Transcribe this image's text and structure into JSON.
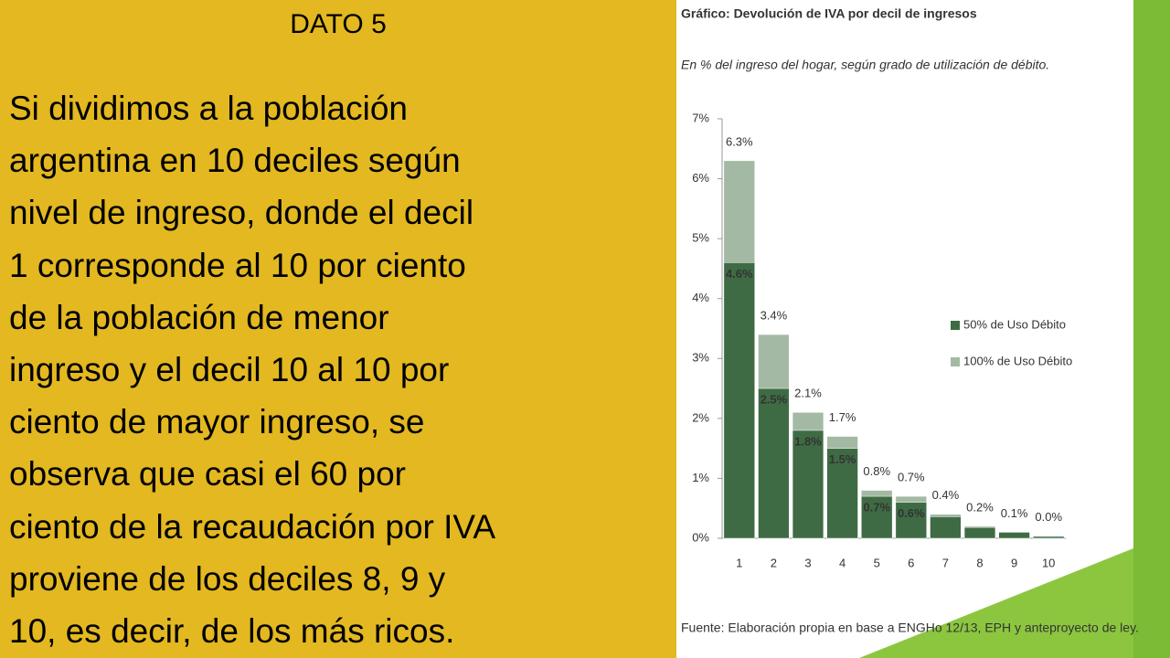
{
  "slide": {
    "heading": "DATO 5",
    "lines": [
      "Si dividimos a la población",
      "argentina en 10 deciles según",
      "nivel de ingreso, donde el decil",
      "1 corresponde al 10 por ciento",
      "de la población de menor",
      "ingreso y el decil 10 al 10 por",
      "ciento de mayor ingreso, se",
      "observa que casi el 60 por",
      "ciento de la recaudación por IVA",
      "proviene de los deciles 8, 9 y",
      "10, es decir, de los más ricos."
    ]
  },
  "chart_data": {
    "type": "bar",
    "title": "Gráfico: Devolución de IVA por decil de ingresos",
    "subtitle": "En % del ingreso del hogar, según grado de utilización de débito.",
    "source": "Fuente: Elaboración propia en base a ENGHo 12/13, EPH y anteproyecto de ley.",
    "categories": [
      "1",
      "2",
      "3",
      "4",
      "5",
      "6",
      "7",
      "8",
      "9",
      "10"
    ],
    "series": [
      {
        "name": "100% de Uso Débito",
        "color": "#a3b9a3",
        "values": [
          6.3,
          3.4,
          2.1,
          1.7,
          0.8,
          0.7,
          0.4,
          0.2,
          0.1,
          0.04
        ],
        "value_labels": [
          "6.3%",
          "3.4%",
          "2.1%",
          "1.7%",
          "0.8%",
          "0.7%",
          "0.4%",
          "0.2%",
          "0.1%",
          "0.0%"
        ]
      },
      {
        "name": "50% de Uso Débito",
        "color": "#3e6b43",
        "values": [
          4.6,
          2.5,
          1.8,
          1.5,
          0.7,
          0.6,
          0.36,
          0.18,
          0.1,
          0.03
        ],
        "value_labels": [
          "4.6%",
          "2.5%",
          "1.8%",
          "1.5%",
          "0.7%",
          "0.6%",
          null,
          null,
          null,
          null
        ]
      }
    ],
    "ylim": [
      0,
      7
    ],
    "yticks": [
      {
        "value": 0,
        "label": "0%"
      },
      {
        "value": 1,
        "label": "1%"
      },
      {
        "value": 2,
        "label": "2%"
      },
      {
        "value": 3,
        "label": "3%"
      },
      {
        "value": 4,
        "label": "4%"
      },
      {
        "value": 5,
        "label": "5%"
      },
      {
        "value": 6,
        "label": "6%"
      },
      {
        "value": 7,
        "label": "7%"
      }
    ]
  }
}
